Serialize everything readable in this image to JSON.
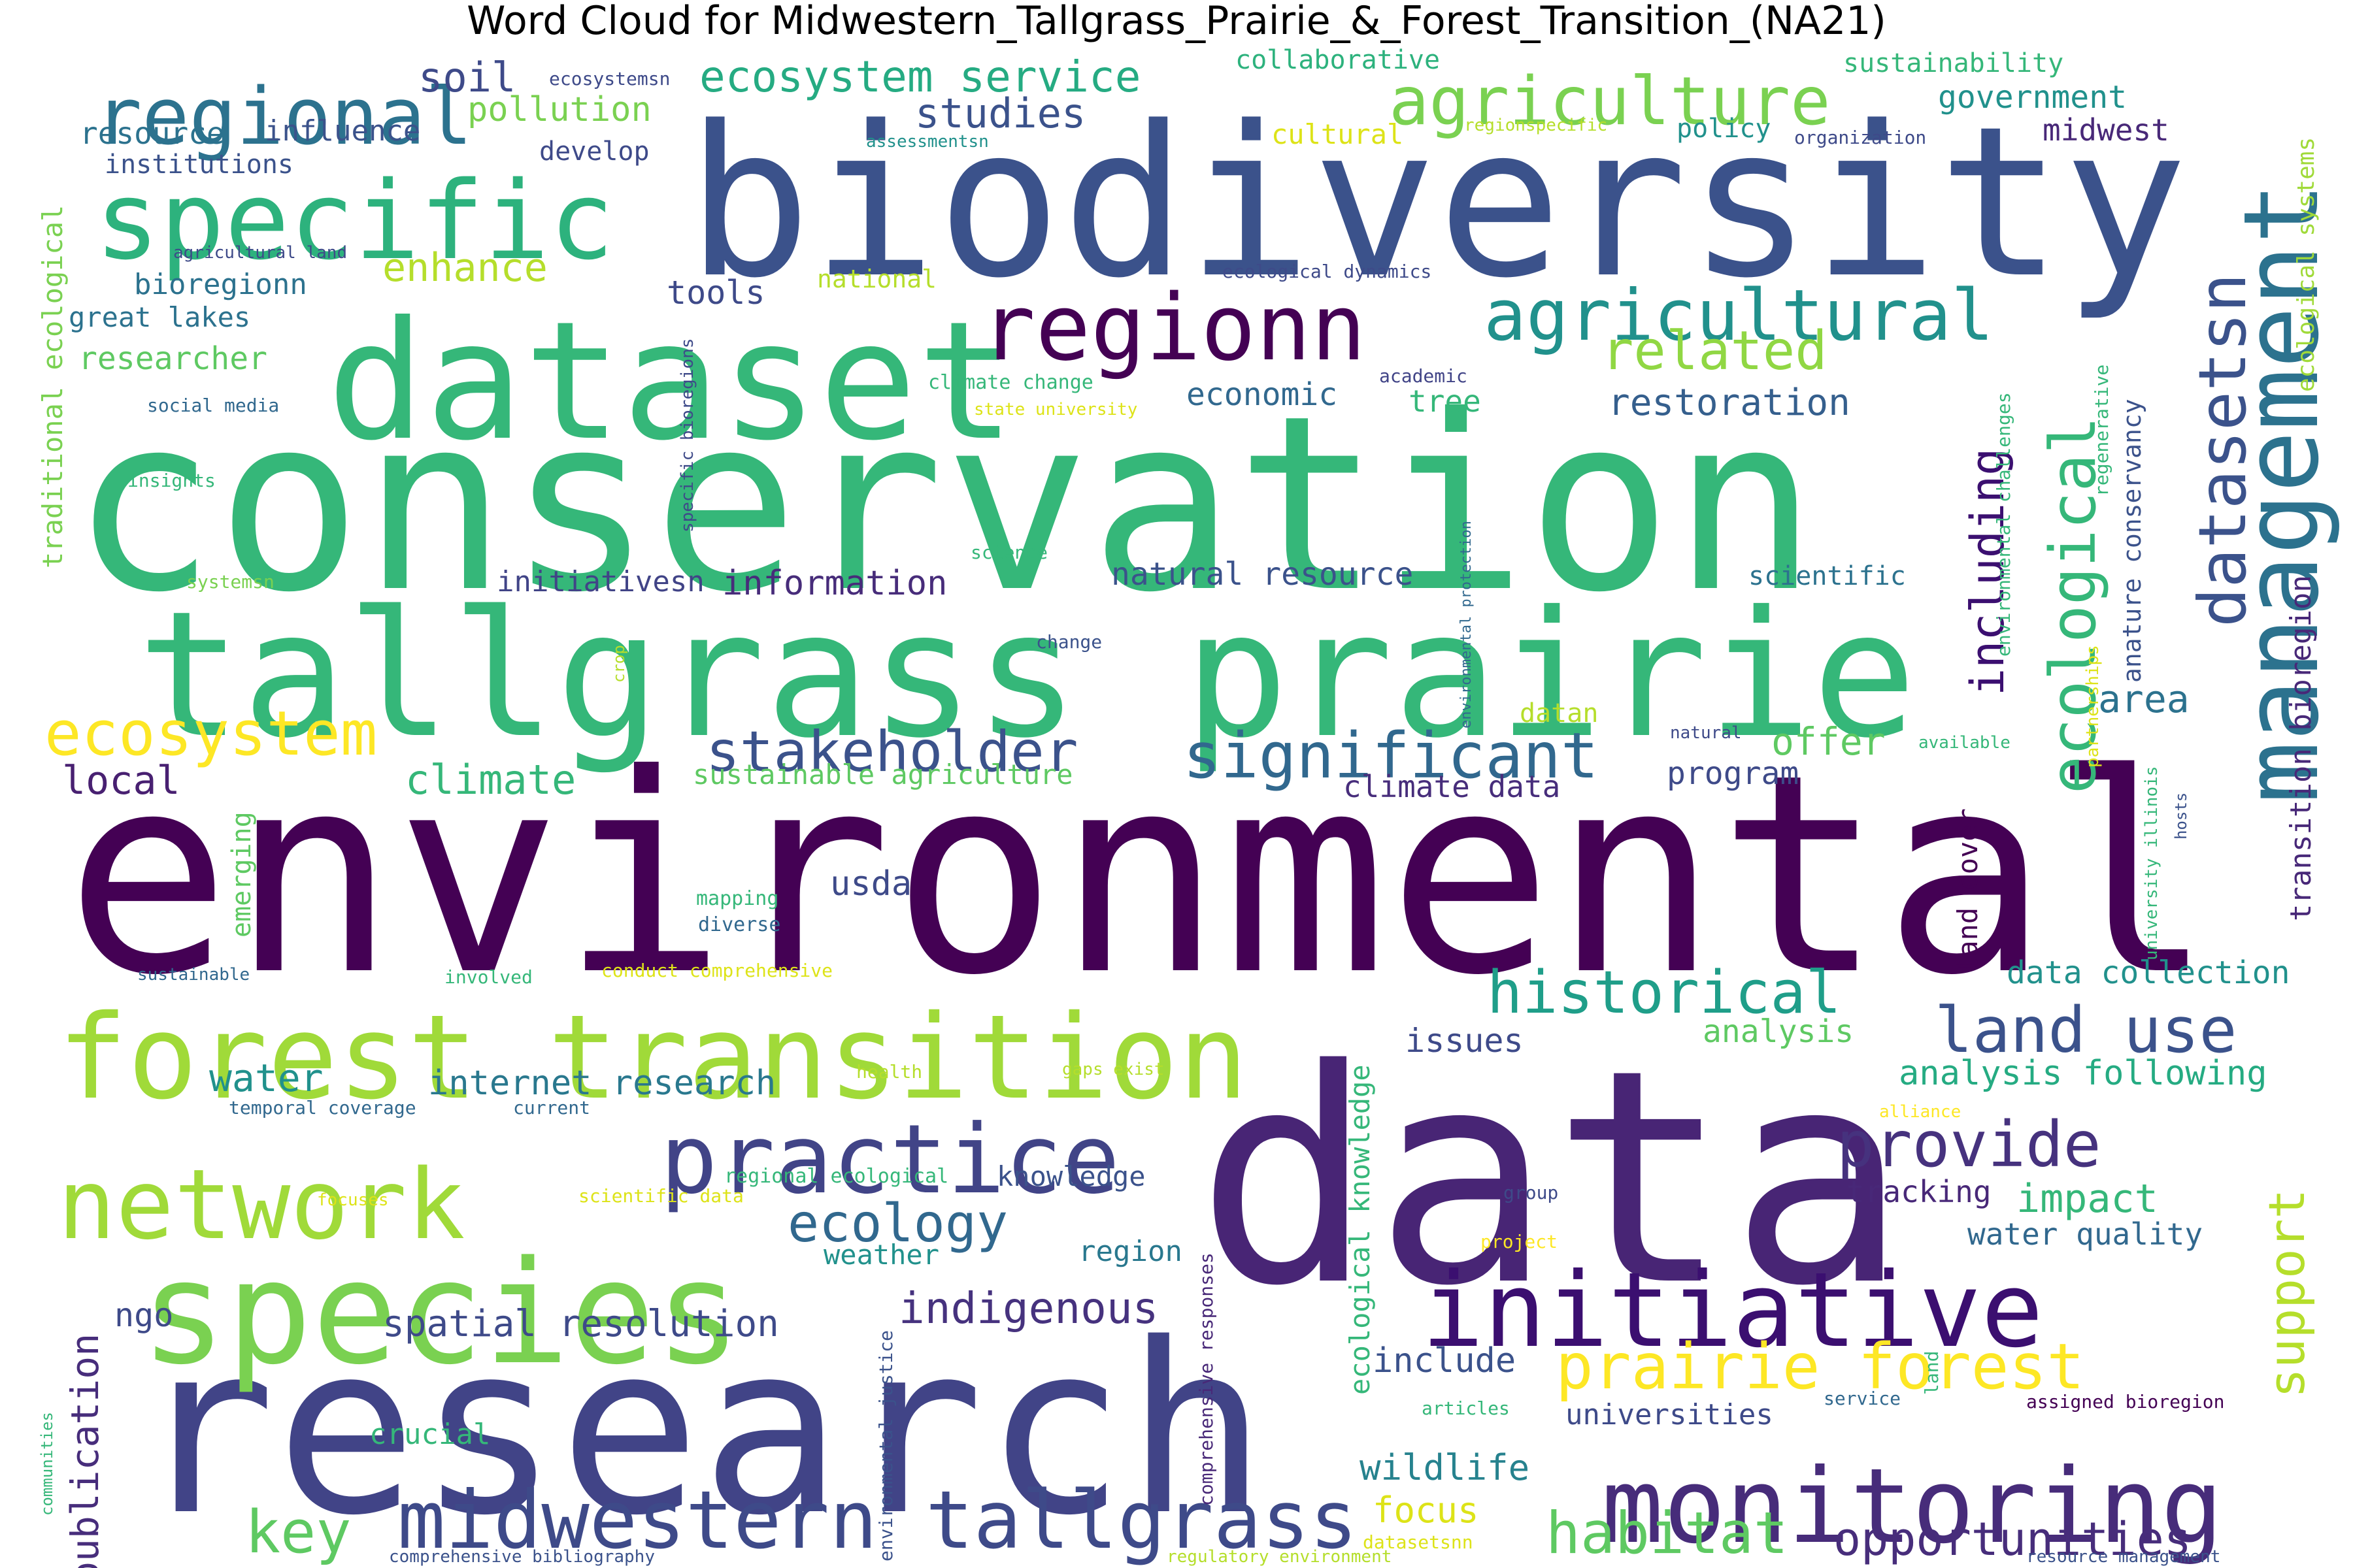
{
  "title": "Word Cloud for Midwestern_Tallgrass_Prairie_&_Forest_Transition_(NA21)",
  "words": [
    {
      "text": "conservation",
      "color": "#35b779"
    },
    {
      "text": "environmental",
      "color": "#440154"
    },
    {
      "text": "biodiversity",
      "color": "#3b528b"
    },
    {
      "text": "data",
      "color": "#482575"
    },
    {
      "text": "research",
      "color": "#414487"
    },
    {
      "text": "tallgrass prairie",
      "color": "#35b779"
    },
    {
      "text": "dataset",
      "color": "#35b779"
    },
    {
      "text": "species",
      "color": "#7ad151"
    },
    {
      "text": "forest transition",
      "color": "#a0da39"
    },
    {
      "text": "specific",
      "color": "#2db27d"
    },
    {
      "text": "regional",
      "color": "#2c728e"
    },
    {
      "text": "management",
      "color": "#2c728e"
    },
    {
      "text": "monitoring",
      "color": "#472c7a"
    },
    {
      "text": "initiative",
      "color": "#3b0f70"
    },
    {
      "text": "network",
      "color": "#a0da39"
    },
    {
      "text": "practice",
      "color": "#414487"
    },
    {
      "text": "regionn",
      "color": "#440154"
    },
    {
      "text": "midwestern tallgrass",
      "color": "#3e4a89"
    },
    {
      "text": "agricultural",
      "color": "#21918c"
    },
    {
      "text": "agriculture",
      "color": "#7ad151"
    },
    {
      "text": "prairie forest",
      "color": "#fde725"
    },
    {
      "text": "ecological",
      "color": "#35b779"
    },
    {
      "text": "datasetsn",
      "color": "#3b528b"
    },
    {
      "text": "stakeholder",
      "color": "#3b528b"
    },
    {
      "text": "significant",
      "color": "#31688e"
    },
    {
      "text": "ecosystem",
      "color": "#fde725"
    },
    {
      "text": "land use",
      "color": "#3b528b"
    },
    {
      "text": "historical",
      "color": "#1f9e89"
    },
    {
      "text": "provide",
      "color": "#46327e"
    },
    {
      "text": "habitat",
      "color": "#5ec962"
    },
    {
      "text": "ecosystem service",
      "color": "#25ab82"
    },
    {
      "text": "related",
      "color": "#90d743"
    },
    {
      "text": "including",
      "color": "#3b0f70"
    },
    {
      "text": "support",
      "color": "#b5de2b"
    },
    {
      "text": "opportunities",
      "color": "#472d7b"
    },
    {
      "text": "ecology",
      "color": "#31688e"
    },
    {
      "text": "key",
      "color": "#5ec962"
    },
    {
      "text": "indigenous",
      "color": "#46327e"
    },
    {
      "text": "studies",
      "color": "#3b528b"
    },
    {
      "text": "restoration",
      "color": "#355f8d"
    },
    {
      "text": "soil",
      "color": "#3e4a89"
    },
    {
      "text": "enhance",
      "color": "#b5de2b"
    },
    {
      "text": "climate",
      "color": "#35b779"
    },
    {
      "text": "offer",
      "color": "#5ec962"
    },
    {
      "text": "impact",
      "color": "#35b779"
    },
    {
      "text": "area",
      "color": "#2c728e"
    },
    {
      "text": "publication",
      "color": "#472d7b"
    },
    {
      "text": "water",
      "color": "#21918c"
    },
    {
      "text": "internet research",
      "color": "#29788e"
    },
    {
      "text": "information",
      "color": "#472c7a"
    },
    {
      "text": "spatial resolution",
      "color": "#3e4a89"
    },
    {
      "text": "wildlife",
      "color": "#26828e"
    },
    {
      "text": "focus",
      "color": "#dde318"
    },
    {
      "text": "include",
      "color": "#3b528b"
    },
    {
      "text": "local",
      "color": "#482071"
    },
    {
      "text": "pollution",
      "color": "#7ad151"
    },
    {
      "text": "program",
      "color": "#3e4a89"
    },
    {
      "text": "economic",
      "color": "#31688e"
    },
    {
      "text": "analysis following",
      "color": "#25ab82"
    },
    {
      "text": "data collection",
      "color": "#21918c"
    },
    {
      "text": "issues",
      "color": "#3e4a89"
    },
    {
      "text": "analysis",
      "color": "#5ec962"
    },
    {
      "text": "tracking",
      "color": "#482878"
    },
    {
      "text": "water quality",
      "color": "#31688e"
    },
    {
      "text": "universities",
      "color": "#3e4a89"
    },
    {
      "text": "crucial",
      "color": "#35b779"
    },
    {
      "text": "ngo",
      "color": "#3e4a89"
    },
    {
      "text": "usda",
      "color": "#3e4a89"
    },
    {
      "text": "knowledge",
      "color": "#3b528b"
    },
    {
      "text": "weather",
      "color": "#21918c"
    },
    {
      "text": "region",
      "color": "#29788e"
    },
    {
      "text": "datan",
      "color": "#b5de2b"
    },
    {
      "text": "tree",
      "color": "#35b779"
    },
    {
      "text": "tools",
      "color": "#3e4a89"
    },
    {
      "text": "climate data",
      "color": "#472d7b"
    },
    {
      "text": "natural resource",
      "color": "#3b528b"
    },
    {
      "text": "initiativesn",
      "color": "#414487"
    },
    {
      "text": "sustainable agriculture",
      "color": "#5ec962"
    },
    {
      "text": "great lakes",
      "color": "#2c728e"
    },
    {
      "text": "researcher",
      "color": "#5ec962"
    },
    {
      "text": "bioregionn",
      "color": "#2c728e"
    },
    {
      "text": "resource",
      "color": "#2c728e"
    },
    {
      "text": "influence",
      "color": "#3b528b"
    },
    {
      "text": "develop",
      "color": "#3e4a89"
    },
    {
      "text": "institutions",
      "color": "#3b528b"
    },
    {
      "text": "collaborative",
      "color": "#2db27d"
    },
    {
      "text": "sustainability",
      "color": "#35b779"
    },
    {
      "text": "government",
      "color": "#21918c"
    },
    {
      "text": "midwest",
      "color": "#482878"
    },
    {
      "text": "policy",
      "color": "#21918c"
    },
    {
      "text": "cultural",
      "color": "#dde318"
    },
    {
      "text": "national",
      "color": "#b5de2b"
    },
    {
      "text": "scientific",
      "color": "#2c728e"
    },
    {
      "text": "land cover",
      "color": "#440154"
    },
    {
      "text": "ecological knowledge",
      "color": "#35b779"
    },
    {
      "text": "transition bioregion",
      "color": "#482878"
    },
    {
      "text": "anature conservancy",
      "color": "#3b528b"
    },
    {
      "text": "emerging",
      "color": "#5ec962"
    },
    {
      "text": "traditional ecological",
      "color": "#7ad151"
    },
    {
      "text": "ecological systems",
      "color": "#a0da39"
    },
    {
      "text": "ecosystemsn",
      "color": "#3e4a89"
    },
    {
      "text": "assessmentsn",
      "color": "#21918c"
    },
    {
      "text": "regionspecific",
      "color": "#b5de2b"
    },
    {
      "text": "organization",
      "color": "#3e4a89"
    },
    {
      "text": "agricultural land",
      "color": "#3e4a89"
    },
    {
      "text": "ecological dynamics",
      "color": "#3e4a89"
    },
    {
      "text": "climate change",
      "color": "#35b779"
    },
    {
      "text": "academic",
      "color": "#414487"
    },
    {
      "text": "state university",
      "color": "#dde318"
    },
    {
      "text": "social media",
      "color": "#31688e"
    },
    {
      "text": "insights",
      "color": "#35b779"
    },
    {
      "text": "specific bioregions",
      "color": "#3e4a89"
    },
    {
      "text": "environmental protection",
      "color": "#31688e"
    },
    {
      "text": "science",
      "color": "#35b779"
    },
    {
      "text": "systemsn",
      "color": "#7ad151"
    },
    {
      "text": "change",
      "color": "#3b528b"
    },
    {
      "text": "crop",
      "color": "#b5de2b"
    },
    {
      "text": "environmental challenges",
      "color": "#35b779"
    },
    {
      "text": "regenerative",
      "color": "#35b779"
    },
    {
      "text": "partnerships",
      "color": "#dde318"
    },
    {
      "text": "natural",
      "color": "#3e4a89"
    },
    {
      "text": "available",
      "color": "#35b779"
    },
    {
      "text": "university illinois",
      "color": "#35b779"
    },
    {
      "text": "hosts",
      "color": "#3b528b"
    },
    {
      "text": "mapping",
      "color": "#35b779"
    },
    {
      "text": "diverse",
      "color": "#31688e"
    },
    {
      "text": "sustainable",
      "color": "#31688e"
    },
    {
      "text": "involved",
      "color": "#35b779"
    },
    {
      "text": "conduct comprehensive",
      "color": "#dde318"
    },
    {
      "text": "health",
      "color": "#b5de2b"
    },
    {
      "text": "gaps exist",
      "color": "#b5de2b"
    },
    {
      "text": "temporal coverage",
      "color": "#31688e"
    },
    {
      "text": "current",
      "color": "#31688e"
    },
    {
      "text": "alliance",
      "color": "#fde725"
    },
    {
      "text": "regional ecological",
      "color": "#35b779"
    },
    {
      "text": "focuses",
      "color": "#dde318"
    },
    {
      "text": "scientific data",
      "color": "#dde318"
    },
    {
      "text": "group",
      "color": "#3e4a89"
    },
    {
      "text": "project",
      "color": "#fde725"
    },
    {
      "text": "comprehensive responses",
      "color": "#482878"
    },
    {
      "text": "environmental justice",
      "color": "#3b528b"
    },
    {
      "text": "articles",
      "color": "#35b779"
    },
    {
      "text": "service",
      "color": "#31688e"
    },
    {
      "text": "land",
      "color": "#35b779"
    },
    {
      "text": "assigned bioregion",
      "color": "#440154"
    },
    {
      "text": "communities",
      "color": "#35b779"
    },
    {
      "text": "datasetsnn",
      "color": "#dde318"
    },
    {
      "text": "comprehensive bibliography",
      "color": "#3b528b"
    },
    {
      "text": "regulatory environment",
      "color": "#b5de2b"
    },
    {
      "text": "resource management",
      "color": "#3b528b"
    }
  ]
}
